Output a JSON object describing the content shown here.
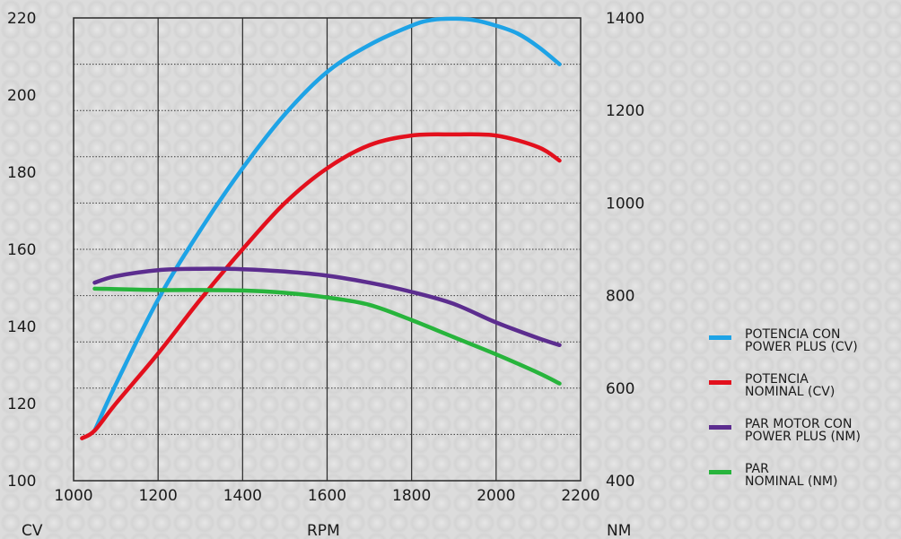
{
  "chart_data": {
    "type": "line",
    "xlabel": "RPM",
    "ylabel_left": "CV",
    "ylabel_right": "NM",
    "xlim": [
      1000,
      2200
    ],
    "ylim_left": [
      100,
      220
    ],
    "ylim_right": [
      400,
      1400
    ],
    "x_ticks": [
      "1000",
      "1200",
      "1400",
      "1600",
      "1800",
      "2000",
      "2200"
    ],
    "y_left_ticks": [
      "100",
      "120",
      "140",
      "160",
      "180",
      "200",
      "220"
    ],
    "y_right_ticks": [
      "400",
      "600",
      "800",
      "1000",
      "1200",
      "1400"
    ],
    "series": [
      {
        "name": "POTENCIA CON\nPOWER PLUS (CV)",
        "axis": "left",
        "color": "#1ea3e6",
        "x": [
          1050,
          1100,
          1200,
          1300,
          1400,
          1500,
          1600,
          1700,
          1800,
          1850,
          1900,
          1950,
          2000,
          2050,
          2100,
          2150
        ],
        "values": [
          113,
          125,
          147,
          165,
          181,
          195,
          206,
          213,
          218,
          219.5,
          219.8,
          219.4,
          218,
          216,
          212.5,
          208
        ]
      },
      {
        "name": "POTENCIA\nNOMINAL (CV)",
        "axis": "left",
        "color": "#e3101d",
        "x": [
          1020,
          1050,
          1100,
          1200,
          1300,
          1400,
          1500,
          1600,
          1700,
          1800,
          1900,
          2000,
          2100,
          2150
        ],
        "values": [
          111,
          113,
          120,
          133,
          147,
          160,
          172,
          181,
          187,
          189.5,
          189.8,
          189.5,
          186.5,
          183
        ]
      },
      {
        "name": "PAR MOTOR CON\nPOWER PLUS (NM)",
        "axis": "right",
        "color": "#5c2d8f",
        "x": [
          1050,
          1100,
          1200,
          1300,
          1400,
          1500,
          1600,
          1700,
          1800,
          1900,
          2000,
          2100,
          2150
        ],
        "values": [
          828,
          842,
          855,
          858,
          857,
          852,
          843,
          828,
          808,
          782,
          742,
          708,
          693
        ]
      },
      {
        "name": "PAR\nNOMINAL (NM)",
        "axis": "right",
        "color": "#27b43c",
        "x": [
          1050,
          1100,
          1200,
          1300,
          1400,
          1500,
          1600,
          1700,
          1800,
          1900,
          2000,
          2100,
          2150
        ],
        "values": [
          815,
          814,
          812,
          812,
          811,
          806,
          796,
          780,
          747,
          710,
          673,
          633,
          610
        ]
      }
    ],
    "legend_position": "right",
    "grid": true
  }
}
